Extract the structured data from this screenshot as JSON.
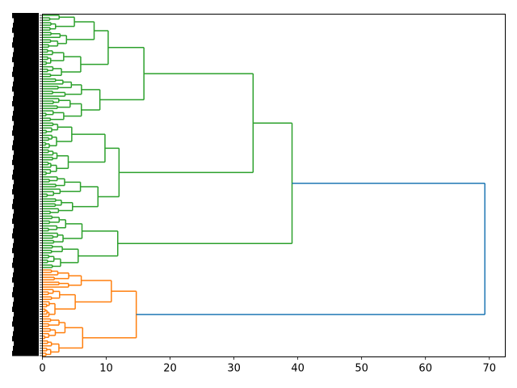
{
  "chart_data": {
    "type": "dendrogram",
    "orientation": "left",
    "title": "",
    "xlabel": "",
    "ylabel": "",
    "xlim": [
      0,
      72.5
    ],
    "xticks": [
      0,
      10,
      20,
      30,
      40,
      50,
      60,
      70
    ],
    "leaf_count": 140,
    "leaf_labels_legible": false,
    "clusters": [
      {
        "name": "",
        "color": "#2ca02c",
        "leaves": 104
      },
      {
        "name": "",
        "color": "#ff7f0e",
        "leaves": 36
      }
    ],
    "above_threshold_color": "#1f77b4",
    "merges": [
      {
        "id": "root",
        "height": 69.3,
        "children": [
          "green-top",
          "orange-top"
        ],
        "color": "#1f77b4"
      },
      {
        "id": "green-top",
        "height": 39.1,
        "children": [
          "g-upper",
          "g-lower"
        ],
        "color": "#2ca02c"
      },
      {
        "id": "g-upper",
        "height": 33.0,
        "children": [
          "g-a",
          "g-b"
        ],
        "color": "#2ca02c"
      },
      {
        "id": "g-a",
        "height": 15.9,
        "children": [
          "g-a1",
          "g-a2"
        ],
        "color": "#2ca02c"
      },
      {
        "id": "g-a1",
        "height": 10.3,
        "children": [
          "g-a1a",
          "g-a1b"
        ],
        "color": "#2ca02c"
      },
      {
        "id": "g-a1a",
        "height": 8.1,
        "children": [],
        "color": "#2ca02c"
      },
      {
        "id": "g-a1b",
        "height": 6.0,
        "children": [],
        "color": "#2ca02c"
      },
      {
        "id": "g-a2",
        "height": 9.0,
        "children": [],
        "color": "#2ca02c"
      },
      {
        "id": "g-b",
        "height": 12.0,
        "children": [
          "g-b1",
          "g-b2"
        ],
        "color": "#2ca02c"
      },
      {
        "id": "g-b1",
        "height": 9.8,
        "children": [],
        "color": "#2ca02c"
      },
      {
        "id": "g-b2",
        "height": 8.7,
        "children": [],
        "color": "#2ca02c"
      },
      {
        "id": "g-lower",
        "height": 11.8,
        "children": [
          "g-c1",
          "g-c2"
        ],
        "color": "#2ca02c"
      },
      {
        "id": "g-c1",
        "height": 6.2,
        "children": [],
        "color": "#2ca02c"
      },
      {
        "id": "g-c2",
        "height": 5.6,
        "children": [],
        "color": "#2ca02c"
      },
      {
        "id": "orange-top",
        "height": 14.7,
        "children": [
          "o-a",
          "o-b"
        ],
        "color": "#ff7f0e"
      },
      {
        "id": "o-a",
        "height": 10.8,
        "children": [],
        "color": "#ff7f0e"
      },
      {
        "id": "o-b",
        "height": 6.3,
        "children": [],
        "color": "#ff7f0e"
      }
    ],
    "grid": false,
    "legend": "none"
  }
}
